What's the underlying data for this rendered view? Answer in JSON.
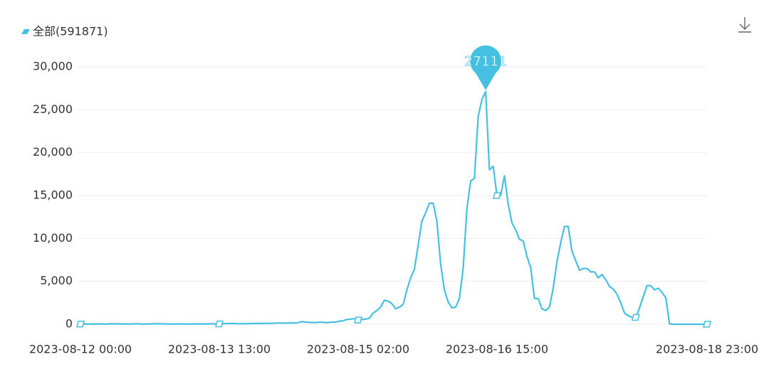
{
  "chart_data": {
    "type": "line",
    "legend": "全部(591871)",
    "series": [
      {
        "name": "全部(591871)",
        "color": "#45c0e0",
        "values": [
          20,
          30,
          20,
          20,
          30,
          40,
          30,
          20,
          50,
          40,
          30,
          40,
          30,
          20,
          40,
          50,
          30,
          20,
          30,
          40,
          60,
          50,
          40,
          30,
          20,
          20,
          30,
          30,
          20,
          20,
          30,
          40,
          30,
          40,
          30,
          50,
          40,
          40,
          80,
          60,
          100,
          80,
          60,
          50,
          60,
          70,
          80,
          90,
          100,
          90,
          120,
          100,
          130,
          150,
          140,
          130,
          160,
          150,
          170,
          300,
          250,
          220,
          200,
          210,
          250,
          200,
          200,
          250,
          250,
          350,
          400,
          550,
          600,
          650,
          500,
          550,
          600,
          700,
          1300,
          1600,
          2000,
          2800,
          2700,
          2400,
          1800,
          2000,
          2300,
          4000,
          5400,
          6400,
          9200,
          12000,
          13000,
          14100,
          14100,
          12000,
          7000,
          4000,
          2600,
          1900,
          2000,
          3000,
          6500,
          13500,
          16700,
          17000,
          24200,
          26200,
          27111,
          18000,
          18400,
          15000,
          15000,
          17300,
          14000,
          11800,
          11000,
          9900,
          9700,
          7900,
          6600,
          3000,
          3000,
          1800,
          1600,
          2000,
          4200,
          7300,
          9500,
          11400,
          11400,
          8500,
          7400,
          6300,
          6500,
          6500,
          6100,
          6100,
          5400,
          5800,
          5200,
          4400,
          4100,
          3500,
          2500,
          1300,
          1000,
          800,
          800,
          1900,
          3200,
          4500,
          4500,
          4000,
          4200,
          3700,
          3100,
          50,
          0,
          0,
          0,
          0,
          0,
          0,
          0,
          0,
          0,
          0
        ]
      }
    ],
    "categories": [
      "2023-08-12 00:00",
      null,
      null,
      null,
      null,
      null,
      null,
      null,
      null,
      null,
      null,
      null,
      null,
      null,
      null,
      null,
      null,
      null,
      null,
      null,
      null,
      null,
      null,
      null,
      null,
      null,
      null,
      null,
      null,
      null,
      null,
      null,
      null,
      null,
      null,
      null,
      null,
      "2023-08-13 13:00",
      null,
      null,
      null,
      null,
      null,
      null,
      null,
      null,
      null,
      null,
      null,
      null,
      null,
      null,
      null,
      null,
      null,
      null,
      null,
      null,
      null,
      null,
      null,
      null,
      null,
      null,
      null,
      null,
      null,
      null,
      null,
      null,
      null,
      null,
      null,
      null,
      "2023-08-15 02:00",
      null,
      null,
      null,
      null,
      null,
      null,
      null,
      null,
      null,
      null,
      null,
      null,
      null,
      null,
      null,
      null,
      null,
      null,
      null,
      null,
      null,
      null,
      null,
      null,
      null,
      null,
      null,
      null,
      null,
      null,
      null,
      null,
      null,
      null,
      null,
      null,
      "2023-08-16 15:00",
      null,
      null,
      null,
      null,
      null,
      null,
      null,
      null,
      null,
      null,
      null,
      null,
      null,
      null,
      null,
      null,
      null,
      null,
      null,
      null,
      null,
      null,
      null,
      null,
      null,
      null,
      null,
      null,
      null,
      null,
      null,
      null,
      null,
      null,
      null,
      null,
      null,
      null,
      null,
      null,
      null,
      null,
      null,
      null,
      null,
      null,
      null,
      null,
      null,
      null,
      null,
      null,
      null,
      null,
      null,
      "2023-08-18 23:00"
    ],
    "ylim": [
      0,
      30000
    ],
    "yticks": [
      0,
      {
        "value": 5000,
        "label": "5,000"
      },
      {
        "value": 10000,
        "label": "10,000"
      },
      {
        "value": 15000,
        "label": "15,000"
      },
      {
        "value": 20000,
        "label": "20,000"
      },
      {
        "value": 25000,
        "label": "25,000"
      },
      {
        "value": 30000,
        "label": "30,000"
      }
    ],
    "grid": true,
    "peak_index": 108
  }
}
